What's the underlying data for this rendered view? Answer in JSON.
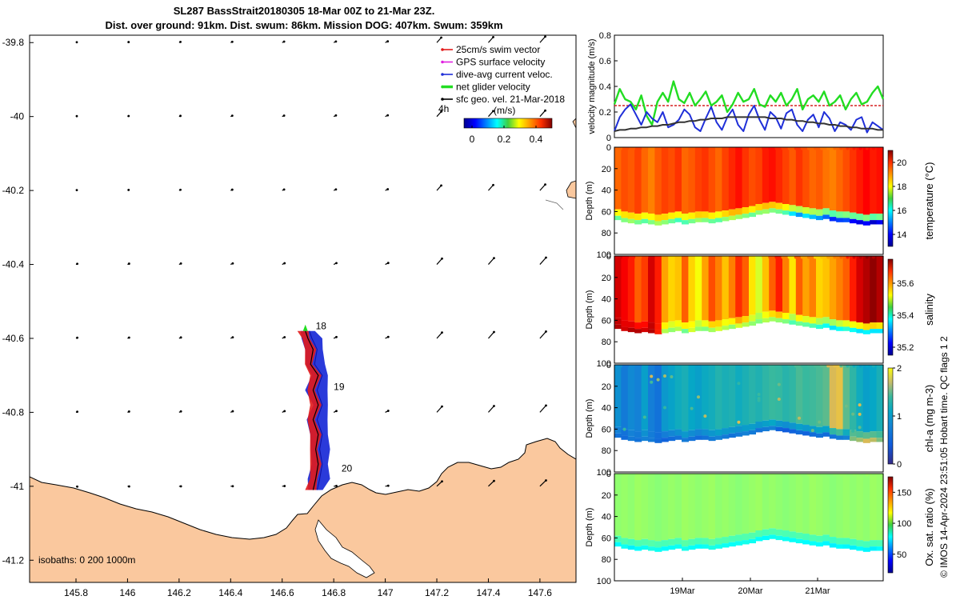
{
  "title_line1": "SL287 BassStrait20180305 18-Mar 00Z to 21-Mar 23Z.",
  "title_line2": "Dist. over ground: 91km. Dist. swum: 86km. Mission DOG: 407km. Swum: 359km",
  "watermark": "© IMOS 14-Apr-2024 23:51:05 Hobart time. QC flags 1  2",
  "colors": {
    "land": "#FAC89E",
    "swim": "#e21b1b",
    "gps": "#e020e0",
    "dive": "#1f2fd8",
    "net": "#22dd22",
    "sfc": "#000000",
    "ref": "#d62020"
  },
  "chart_data": [
    {
      "type": "map",
      "lon_range": [
        145.62,
        147.74
      ],
      "lat_range": [
        -41.26,
        -39.78
      ],
      "x_ticks": [
        "145.8",
        "146",
        "146.2",
        "146.4",
        "146.6",
        "146.8",
        "147",
        "147.2",
        "147.4",
        "147.6"
      ],
      "x_tick_values": [
        145.8,
        146.0,
        146.2,
        146.4,
        146.6,
        146.8,
        147.0,
        147.2,
        147.4,
        147.6
      ],
      "y_ticks": [
        "-39.8",
        "-40",
        "-40.2",
        "-40.4",
        "-40.6",
        "-40.8",
        "-41",
        "-41.2"
      ],
      "y_tick_values": [
        -39.8,
        -40.0,
        -40.2,
        -40.4,
        -40.6,
        -40.8,
        -41.0,
        -41.2
      ],
      "legend": [
        {
          "label": "25cm/s swim vector",
          "color": "#e21b1b"
        },
        {
          "label": "GPS surface velocity",
          "color": "#e020e0"
        },
        {
          "label": "dive-avg current veloc.",
          "color": "#1f2fd8"
        },
        {
          "label": "net glider velocity",
          "color": "#22dd22"
        },
        {
          "label": "sfc geo. vel. 21-Mar-2018",
          "color": "#000000"
        }
      ],
      "time_step_label": "4h",
      "colorbar": {
        "label": "(m/s)",
        "ticks": [
          "0",
          "0.2",
          "0.4"
        ],
        "tick_values": [
          0,
          0.2,
          0.4
        ],
        "range": [
          -0.05,
          0.5
        ]
      },
      "day_labels": [
        {
          "text": "18",
          "lon": 146.73,
          "lat": -40.575
        },
        {
          "text": "19",
          "lon": 146.8,
          "lat": -40.74
        },
        {
          "text": "20",
          "lon": 146.83,
          "lat": -40.96
        }
      ],
      "isobath_note": "isobaths: 0   200  1000m",
      "track": [
        [
          146.69,
          -40.58
        ],
        [
          146.7,
          -40.6
        ],
        [
          146.72,
          -40.63
        ],
        [
          146.71,
          -40.67
        ],
        [
          146.74,
          -40.7
        ],
        [
          146.72,
          -40.74
        ],
        [
          146.74,
          -40.78
        ],
        [
          146.72,
          -40.82
        ],
        [
          146.74,
          -40.86
        ],
        [
          146.73,
          -40.9
        ],
        [
          146.74,
          -40.94
        ],
        [
          146.73,
          -40.98
        ],
        [
          146.72,
          -41.01
        ]
      ]
    },
    {
      "type": "line",
      "ylabel": "velocity magnitude (m/s)",
      "ylim": [
        0,
        0.8
      ],
      "y_ticks": [
        "0",
        "0.2",
        "0.4",
        "0.6",
        "0.8"
      ],
      "y_tick_values": [
        0,
        0.2,
        0.4,
        0.6,
        0.8
      ],
      "reference_line": 0.25,
      "series": [
        {
          "name": "net glider velocity",
          "color": "#22dd22",
          "values": [
            0.26,
            0.38,
            0.3,
            0.28,
            0.22,
            0.33,
            0.17,
            0.1,
            0.28,
            0.35,
            0.28,
            0.44,
            0.3,
            0.27,
            0.35,
            0.25,
            0.3,
            0.36,
            0.25,
            0.28,
            0.33,
            0.2,
            0.26,
            0.35,
            0.28,
            0.3,
            0.38,
            0.26,
            0.24,
            0.33,
            0.28,
            0.35,
            0.25,
            0.3,
            0.38,
            0.22,
            0.3,
            0.33,
            0.28,
            0.36,
            0.25,
            0.28,
            0.33,
            0.22,
            0.3,
            0.35,
            0.26,
            0.28,
            0.35,
            0.4,
            0.3
          ]
        },
        {
          "name": "dive-avg current veloc.",
          "color": "#1f2fd8",
          "values": [
            0.05,
            0.16,
            0.22,
            0.26,
            0.18,
            0.1,
            0.2,
            0.15,
            0.12,
            0.2,
            0.08,
            0.1,
            0.14,
            0.22,
            0.18,
            0.08,
            0.05,
            0.15,
            0.24,
            0.12,
            0.06,
            0.16,
            0.22,
            0.1,
            0.05,
            0.18,
            0.25,
            0.14,
            0.06,
            0.2,
            0.16,
            0.07,
            0.19,
            0.22,
            0.1,
            0.05,
            0.14,
            0.18,
            0.08,
            0.2,
            0.15,
            0.05,
            0.12,
            0.1,
            0.06,
            0.14,
            0.16,
            0.04,
            0.12,
            0.09,
            0.06
          ]
        },
        {
          "name": "sfc geo. vel.",
          "color": "#333333",
          "values": [
            0.05,
            0.06,
            0.06,
            0.07,
            0.07,
            0.08,
            0.08,
            0.09,
            0.09,
            0.1,
            0.1,
            0.11,
            0.12,
            0.12,
            0.13,
            0.13,
            0.14,
            0.14,
            0.15,
            0.15,
            0.15,
            0.16,
            0.16,
            0.16,
            0.16,
            0.16,
            0.16,
            0.16,
            0.16,
            0.15,
            0.15,
            0.15,
            0.14,
            0.14,
            0.13,
            0.13,
            0.12,
            0.12,
            0.11,
            0.11,
            0.1,
            0.1,
            0.09,
            0.09,
            0.08,
            0.08,
            0.07,
            0.07,
            0.07,
            0.06,
            0.06
          ]
        }
      ]
    },
    {
      "type": "heatmap",
      "variable": "temperature",
      "colorbar_label": "temperature (°C)",
      "cbar_ticks": [
        "14",
        "16",
        "18",
        "20"
      ],
      "cbar_tick_values": [
        14,
        16,
        18,
        20
      ],
      "crange": [
        13,
        21
      ],
      "ylabel": "Depth (m)",
      "y_ticks": [
        "0",
        "20",
        "40",
        "60",
        "80",
        "100"
      ],
      "y_tick_values": [
        0,
        20,
        40,
        60,
        80,
        100
      ],
      "columns": [
        19.2,
        19.4,
        19.3,
        19.5,
        19.2,
        19.0,
        19.3,
        19.5,
        19.4,
        19.6,
        19.2,
        19.3,
        19.5,
        19.6,
        19.4,
        19.2,
        19.5,
        19.7,
        19.9,
        19.6,
        19.4,
        19.5,
        19.8,
        19.9,
        19.7,
        19.5,
        19.3,
        19.6,
        19.4,
        19.2,
        19.3,
        19.1,
        19.0,
        19.2,
        19.4,
        19.6,
        19.8,
        20.0,
        19.8,
        19.9
      ],
      "bottom_values": [
        16.8,
        17.0,
        17.2,
        16.9,
        16.7,
        17.0,
        17.3,
        17.1,
        16.8,
        16.5,
        16.6,
        16.9,
        17.2,
        17.0,
        16.8,
        16.7,
        17.1,
        17.4,
        17.2,
        17.0,
        16.8,
        17.1,
        17.2,
        17.0,
        16.9,
        16.6,
        15.8,
        15.2,
        15.8,
        15.5,
        15.2,
        14.8,
        14.3,
        14.5,
        14.6,
        14.0,
        13.8,
        14.0,
        13.6,
        13.9
      ]
    },
    {
      "type": "heatmap",
      "variable": "salinity",
      "colorbar_label": "salinity",
      "cbar_ticks": [
        "35.2",
        "35.4",
        "35.6"
      ],
      "cbar_tick_values": [
        35.2,
        35.4,
        35.6
      ],
      "crange": [
        35.15,
        35.75
      ],
      "ylabel": "Depth (m)",
      "y_ticks": [
        "0",
        "20",
        "40",
        "60",
        "80",
        "100"
      ],
      "y_tick_values": [
        0,
        20,
        40,
        60,
        80,
        100
      ],
      "columns": [
        35.7,
        35.68,
        35.66,
        35.62,
        35.64,
        35.7,
        35.66,
        35.58,
        35.55,
        35.56,
        35.62,
        35.55,
        35.52,
        35.58,
        35.63,
        35.6,
        35.56,
        35.6,
        35.65,
        35.62,
        35.54,
        35.5,
        35.56,
        35.62,
        35.66,
        35.6,
        35.54,
        35.62,
        35.58,
        35.6,
        35.55,
        35.56,
        35.58,
        35.6,
        35.62,
        35.66,
        35.7,
        35.72,
        35.74,
        35.72
      ],
      "bottom_values": [
        35.72,
        35.7,
        35.72,
        35.72,
        35.7,
        35.72,
        35.66,
        35.48,
        35.46,
        35.48,
        35.44,
        35.5,
        35.46,
        35.45,
        35.47,
        35.5,
        35.48,
        35.46,
        35.5,
        35.48,
        35.46,
        35.45,
        35.48,
        35.47,
        35.46,
        35.45,
        35.42,
        35.44,
        35.43,
        35.42,
        35.4,
        35.38,
        35.36,
        35.38,
        35.4,
        35.38,
        35.36,
        35.37,
        35.36,
        35.36
      ]
    },
    {
      "type": "heatmap",
      "variable": "chl-a",
      "colorbar_label": "chl-a (mg m-3)",
      "cbar_ticks": [
        "0",
        "1",
        "2"
      ],
      "cbar_tick_values": [
        0,
        1,
        2
      ],
      "crange": [
        0,
        2
      ],
      "ylabel": "Depth (m)",
      "y_ticks": [
        "0",
        "20",
        "40",
        "60",
        "80",
        "100"
      ],
      "y_tick_values": [
        0,
        20,
        40,
        60,
        80,
        100
      ],
      "columns": [
        0.6,
        0.45,
        0.55,
        0.5,
        0.7,
        0.48,
        0.4,
        0.65,
        0.72,
        0.8,
        0.85,
        0.75,
        0.7,
        0.78,
        0.82,
        0.9,
        0.85,
        0.88,
        0.8,
        0.86,
        0.92,
        0.88,
        0.95,
        1.0,
        0.98,
        0.92,
        0.96,
        1.05,
        1.0,
        1.02,
        1.05,
        1.1,
        1.5,
        1.6,
        1.1,
        0.95,
        0.8,
        0.7,
        0.75,
        0.85
      ],
      "bottom_values": [
        0.4,
        0.35,
        0.45,
        0.4,
        0.5,
        0.45,
        0.35,
        0.3,
        0.35,
        0.4,
        0.45,
        0.4,
        0.35,
        0.4,
        0.45,
        0.5,
        0.45,
        0.4,
        0.45,
        0.5,
        0.45,
        0.4,
        0.45,
        0.5,
        0.3,
        0.25,
        0.3,
        0.35,
        0.3,
        0.35,
        0.4,
        0.35,
        0.4,
        0.45,
        0.5,
        1.2,
        1.3,
        1.5,
        1.4,
        1.2
      ]
    },
    {
      "type": "heatmap",
      "variable": "oxygen saturation",
      "colorbar_label": "Ox. sat. ratio (%)",
      "cbar_ticks": [
        "50",
        "100",
        "150"
      ],
      "cbar_tick_values": [
        50,
        100,
        150
      ],
      "crange": [
        20,
        175
      ],
      "ylabel": "Depth (m)",
      "y_ticks": [
        "0",
        "20",
        "40",
        "60",
        "80",
        "100"
      ],
      "y_tick_values": [
        0,
        20,
        40,
        60,
        80,
        100
      ],
      "x_ticks": [
        "19Mar",
        "20Mar",
        "21Mar"
      ],
      "columns": [
        100,
        101,
        100,
        102,
        101,
        100,
        99,
        100,
        101,
        100,
        102,
        101,
        100,
        101,
        102,
        100,
        101,
        100,
        99,
        100,
        101,
        102,
        100,
        101,
        100,
        99,
        100,
        101,
        100,
        102,
        101,
        100,
        99,
        100,
        101,
        100,
        101,
        100,
        102,
        101
      ],
      "bottom_values": [
        78,
        80,
        76,
        78,
        80,
        82,
        80,
        78,
        79,
        80,
        81,
        79,
        78,
        80,
        82,
        81,
        80,
        79,
        80,
        81,
        80,
        79,
        78,
        80,
        81,
        80,
        79,
        80,
        78,
        79,
        78,
        77,
        76,
        78,
        77,
        76,
        78,
        77,
        76,
        78
      ]
    }
  ]
}
